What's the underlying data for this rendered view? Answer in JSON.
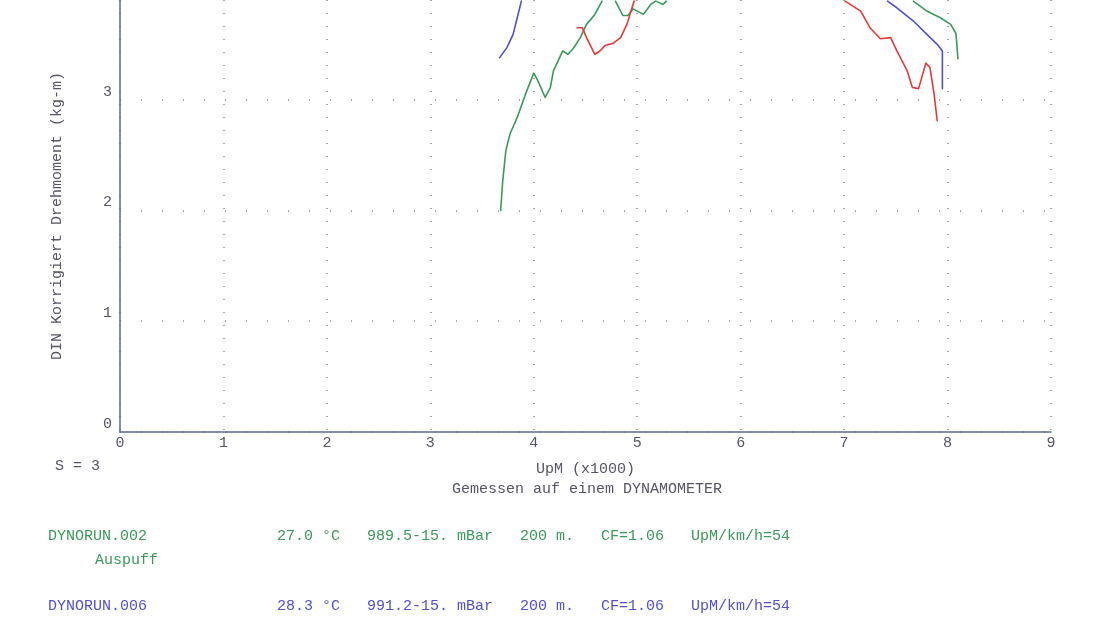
{
  "chart_data": {
    "type": "line",
    "xlabel": "UpM (x1000)",
    "ylabel": "DIN Korrigiert Drehmoment (kg-m)",
    "xlim": [
      0,
      9
    ],
    "xticks": [
      0,
      1,
      2,
      3,
      4,
      5,
      6,
      7,
      8,
      9
    ],
    "ylim": [
      0,
      3.9
    ],
    "yticks": [
      0,
      1,
      2,
      3
    ],
    "grid": true,
    "legend": false,
    "marker": "none",
    "line_style": "solid",
    "annotations": [
      "S = 3",
      "Gemessen auf einem DYNAMOMETER",
      "27.0 °C   989.5-15. mBar   200 m.   CF=1.06   UpM/km/h=54",
      "Auspuff",
      "28.3 °C   991.2-15. mBar   200 m.   CF=1.06   UpM/km/h=54"
    ],
    "series": [
      {
        "name": "DYNORUN.002",
        "color": "#3a9a5a",
        "x": [
          3.68,
          3.7,
          3.73,
          3.77,
          3.84,
          3.92,
          4.0,
          4.04,
          4.11,
          4.16,
          4.19,
          4.28,
          4.33,
          4.38,
          4.45,
          4.51,
          4.59,
          4.66,
          4.72,
          4.79,
          4.86,
          4.91,
          4.96,
          5.06,
          5.13,
          5.18,
          5.25,
          5.28,
          6.5,
          7.67,
          7.8,
          7.93,
          8.03,
          8.08,
          8.09,
          8.1
        ],
        "values": [
          2.0,
          2.27,
          2.54,
          2.69,
          2.84,
          3.05,
          3.24,
          3.17,
          3.02,
          3.11,
          3.26,
          3.44,
          3.41,
          3.46,
          3.56,
          3.68,
          3.77,
          3.89,
          null,
          3.89,
          3.76,
          3.76,
          3.82,
          3.77,
          3.86,
          3.89,
          3.86,
          3.89,
          null,
          3.89,
          3.8,
          3.74,
          3.68,
          3.6,
          3.5,
          3.37
        ]
      },
      {
        "name": "DYNORUN.006",
        "color": "#5050d0",
        "x": [
          3.67,
          3.74,
          3.8,
          3.84,
          3.88,
          5.5,
          7.42,
          7.51,
          7.67,
          7.8,
          7.9,
          7.95,
          7.95,
          7.95
        ],
        "values": [
          3.38,
          3.47,
          3.59,
          3.74,
          3.89,
          null,
          3.89,
          3.83,
          3.71,
          3.59,
          3.5,
          3.44,
          3.29,
          3.1
        ]
      },
      {
        "color": "#e83838",
        "x": [
          4.42,
          4.47,
          4.51,
          4.59,
          4.64,
          4.69,
          4.77,
          4.84,
          4.9,
          4.95,
          4.97,
          6.0,
          7.01,
          7.16,
          7.25,
          7.35,
          7.45,
          7.51,
          7.61,
          7.66,
          7.72,
          7.79,
          7.83,
          7.87,
          7.9
        ],
        "values": [
          3.65,
          3.65,
          3.56,
          3.41,
          3.44,
          3.49,
          3.51,
          3.56,
          3.68,
          3.83,
          3.89,
          null,
          3.89,
          3.8,
          3.65,
          3.55,
          3.56,
          3.44,
          3.26,
          3.11,
          3.1,
          3.33,
          3.29,
          3.05,
          2.81
        ]
      }
    ]
  }
}
